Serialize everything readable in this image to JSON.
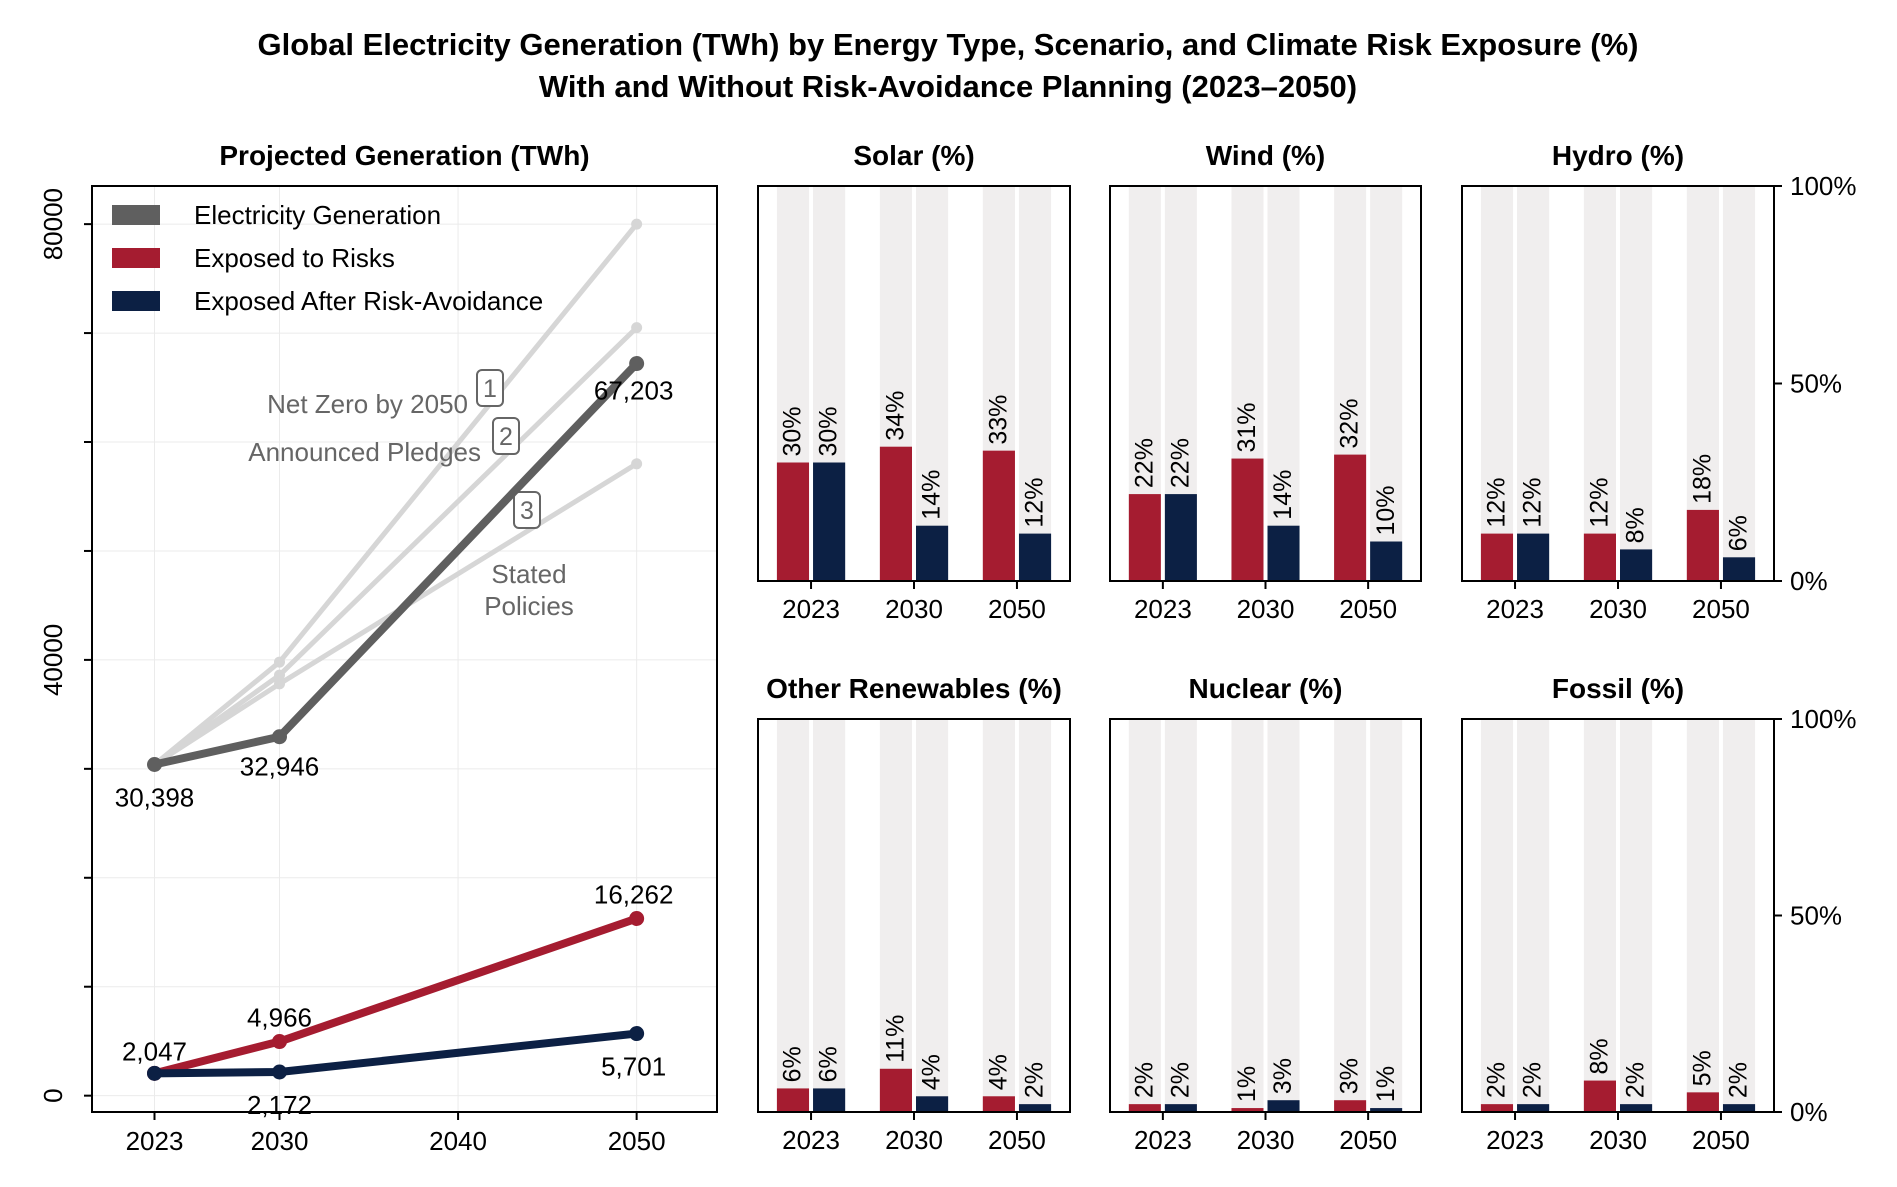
{
  "title_line1": "Global Electricity Generation (TWh) by Energy Type, Scenario, and Climate Risk Exposure (%)",
  "title_line2": "With and Without Risk-Avoidance Planning (2023–2050)",
  "colors": {
    "generation": "#5f5f5f",
    "scenario": "#d6d6d6",
    "risk": "#a51c30",
    "avoid": "#0c2044",
    "track": "#f0eeee"
  },
  "chart_data": [
    {
      "type": "line",
      "title": "Projected Generation (TWh)",
      "x": [
        2023,
        2030,
        2050
      ],
      "xticks": [
        2023,
        2030,
        2040,
        2050
      ],
      "yticks": [
        0,
        40000,
        80000
      ],
      "xlim": [
        2019.5,
        2054.5
      ],
      "ylim": [
        -1500,
        83500
      ],
      "grid": true,
      "legend_position": "top-left",
      "series": [
        {
          "name": "Electricity Generation",
          "values": [
            30398,
            32946,
            67203
          ],
          "labels": [
            "30,398",
            "32,946",
            "67,203"
          ]
        },
        {
          "name": "Exposed to Risks",
          "values": [
            2047,
            4966,
            16262
          ],
          "labels": [
            "2,047",
            "4,966",
            "16,262"
          ]
        },
        {
          "name": "Exposed After Risk-Avoidance",
          "values": [
            2047,
            2172,
            5701
          ],
          "labels": [
            "",
            "2,172",
            "5,701"
          ]
        }
      ],
      "scenarios": [
        {
          "name": "Net Zero by 2050",
          "badge": "1",
          "values": [
            30398,
            39800,
            80000
          ]
        },
        {
          "name": "Announced Pledges",
          "badge": "2",
          "values": [
            30398,
            38600,
            70500
          ]
        },
        {
          "name": "Stated Policies",
          "badge": "3",
          "values": [
            30398,
            37800,
            58000
          ]
        }
      ]
    },
    {
      "type": "bar",
      "panels": [
        {
          "title": "Solar (%)",
          "categories": [
            "2023",
            "2030",
            "2050"
          ],
          "exposed": [
            30,
            34,
            33
          ],
          "after": [
            30,
            14,
            12
          ]
        },
        {
          "title": "Wind (%)",
          "categories": [
            "2023",
            "2030",
            "2050"
          ],
          "exposed": [
            22,
            31,
            32
          ],
          "after": [
            22,
            14,
            10
          ]
        },
        {
          "title": "Hydro (%)",
          "categories": [
            "2023",
            "2030",
            "2050"
          ],
          "exposed": [
            12,
            12,
            18
          ],
          "after": [
            12,
            8,
            6
          ]
        },
        {
          "title": "Other Renewables (%)",
          "categories": [
            "2023",
            "2030",
            "2050"
          ],
          "exposed": [
            6,
            11,
            4
          ],
          "after": [
            6,
            4,
            2
          ]
        },
        {
          "title": "Nuclear (%)",
          "categories": [
            "2023",
            "2030",
            "2050"
          ],
          "exposed": [
            2,
            1,
            3
          ],
          "after": [
            2,
            3,
            1
          ]
        },
        {
          "title": "Fossil (%)",
          "categories": [
            "2023",
            "2030",
            "2050"
          ],
          "exposed": [
            2,
            8,
            5
          ],
          "after": [
            2,
            2,
            2
          ]
        }
      ],
      "ylim": [
        0,
        100
      ],
      "yticks": [
        "0%",
        "50%",
        "100%"
      ],
      "ytick_values": [
        0,
        50,
        100
      ]
    }
  ]
}
